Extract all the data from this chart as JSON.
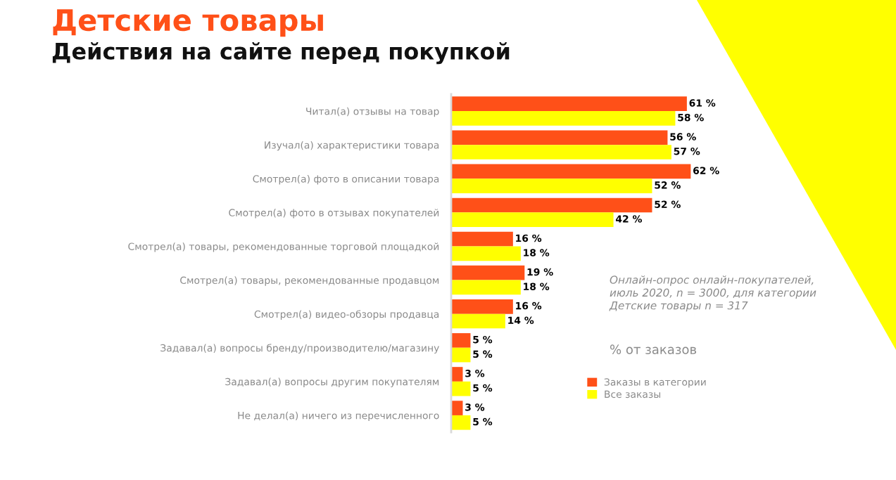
{
  "chart_data": {
    "type": "bar",
    "orientation": "horizontal",
    "title": "Детские товары",
    "subtitle": "Действия на сайте перед покупкой",
    "categories": [
      "Читал(а) отзывы на товар",
      "Изучал(а) характеристики товара",
      "Смотрел(а) фото в описании товара",
      "Смотрел(а) фото в отзывах покупателей",
      "Смотрел(а) товары, рекомендованные торговой площадкой",
      "Смотрел(а) товары, рекомендованные продавцом",
      "Смотрел(а) видео-обзоры продавца",
      "Задавал(а) вопросы бренду/производителю/магазину",
      "Задавал(а) вопросы другим покупателям",
      "Не делал(а) ничего из перечисленного"
    ],
    "series": [
      {
        "name": "Заказы в категории",
        "color": "#ff5018",
        "values": [
          61,
          56,
          62,
          52,
          16,
          19,
          16,
          5,
          3,
          3
        ],
        "value_labels": [
          "61 %",
          "56 %",
          "62 %",
          "52 %",
          "16 %",
          "19 %",
          "16 %",
          "5 %",
          "3 %",
          "3 %"
        ]
      },
      {
        "name": "Все заказы",
        "color": "#ffff00",
        "values": [
          58,
          57,
          52,
          42,
          18,
          18,
          14,
          5,
          5,
          5
        ],
        "value_labels": [
          "58 %",
          "57 %",
          "52 %",
          "42 %",
          "18 %",
          "18 %",
          "14 %",
          "5 %",
          "5 %",
          "5 %"
        ]
      }
    ],
    "annotations": [
      "Онлайн-опрос онлайн-покупателей,\nиюль 2020, n = 3000, для категории\nДетские товары n = 317",
      "% от заказов"
    ],
    "legend": "bottom",
    "tick_labels": "y"
  }
}
